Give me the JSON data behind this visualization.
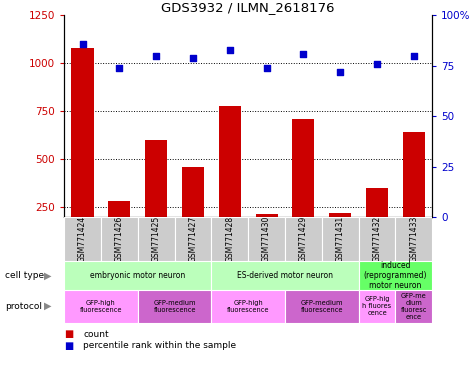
{
  "title": "GDS3932 / ILMN_2618176",
  "samples": [
    "GSM771424",
    "GSM771426",
    "GSM771425",
    "GSM771427",
    "GSM771428",
    "GSM771430",
    "GSM771429",
    "GSM771431",
    "GSM771432",
    "GSM771433"
  ],
  "counts": [
    1080,
    285,
    600,
    460,
    780,
    215,
    710,
    220,
    350,
    645
  ],
  "percentiles": [
    86,
    74,
    80,
    79,
    83,
    74,
    81,
    72,
    76,
    80
  ],
  "ylim_left": [
    200,
    1250
  ],
  "ylim_right": [
    0,
    100
  ],
  "yticks_left": [
    250,
    500,
    750,
    1000,
    1250
  ],
  "yticks_right": [
    0,
    25,
    50,
    75,
    100
  ],
  "cell_type_groups": [
    {
      "label": "embryonic motor neuron",
      "start": 0,
      "end": 4,
      "color": "#bbffbb"
    },
    {
      "label": "ES-derived motor neuron",
      "start": 4,
      "end": 8,
      "color": "#bbffbb"
    },
    {
      "label": "induced\n(reprogrammed)\nmotor neuron",
      "start": 8,
      "end": 10,
      "color": "#66ff66"
    }
  ],
  "protocol_groups": [
    {
      "label": "GFP-high\nfluorescence",
      "start": 0,
      "end": 2,
      "color": "#ff99ff"
    },
    {
      "label": "GFP-medium\nfluorescence",
      "start": 2,
      "end": 4,
      "color": "#cc66cc"
    },
    {
      "label": "GFP-high\nfluorescence",
      "start": 4,
      "end": 6,
      "color": "#ff99ff"
    },
    {
      "label": "GFP-medium\nfluorescence",
      "start": 6,
      "end": 8,
      "color": "#cc66cc"
    },
    {
      "label": "GFP-hig\nh fluores\ncence",
      "start": 8,
      "end": 9,
      "color": "#ff99ff"
    },
    {
      "label": "GFP-me\ndium\nfluoresc\nence",
      "start": 9,
      "end": 10,
      "color": "#cc66cc"
    }
  ],
  "bar_color": "#cc0000",
  "dot_color": "#0000cc",
  "sample_bg_color": "#cccccc",
  "legend_count_color": "#cc0000",
  "legend_percentile_color": "#0000cc"
}
